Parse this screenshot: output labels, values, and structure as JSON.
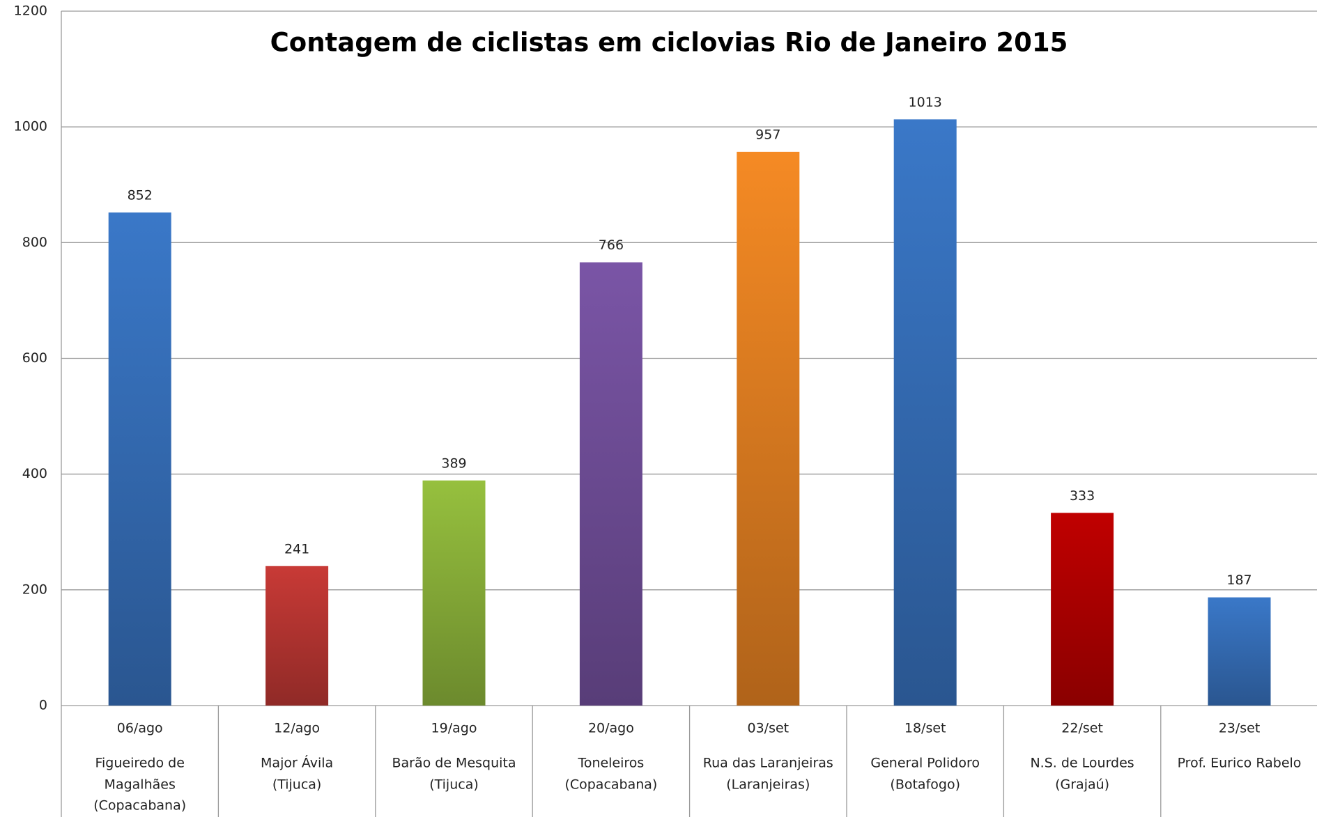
{
  "chart_data": {
    "type": "bar",
    "title": "Contagem de ciclistas em ciclovias Rio de Janeiro 2015",
    "categories": [
      [
        "06/ago",
        "Figueiredo de",
        "Magalhães",
        "(Copacabana)"
      ],
      [
        "12/ago",
        "Major Ávila",
        "(Tijuca)"
      ],
      [
        "19/ago",
        "Barão de Mesquita",
        "(Tijuca)"
      ],
      [
        "20/ago",
        "Toneleiros",
        "(Copacabana)"
      ],
      [
        "03/set",
        "Rua das Laranjeiras",
        "(Laranjeiras)"
      ],
      [
        "18/set",
        "General Polidoro",
        "(Botafogo)"
      ],
      [
        "22/set",
        "N.S. de Lourdes",
        "(Grajaú)"
      ],
      [
        "23/set",
        "Prof. Eurico Rabelo"
      ]
    ],
    "values": [
      852,
      241,
      389,
      766,
      957,
      1013,
      333,
      187
    ],
    "colors": [
      "#3a78c8",
      "#c83a36",
      "#96c03e",
      "#7a55a6",
      "#f58a24",
      "#3a78c8",
      "#c00000",
      "#3a78c8"
    ],
    "ylim": [
      0,
      1200
    ],
    "yticks": [
      0,
      200,
      400,
      600,
      800,
      1000,
      1200
    ],
    "grid": true
  }
}
